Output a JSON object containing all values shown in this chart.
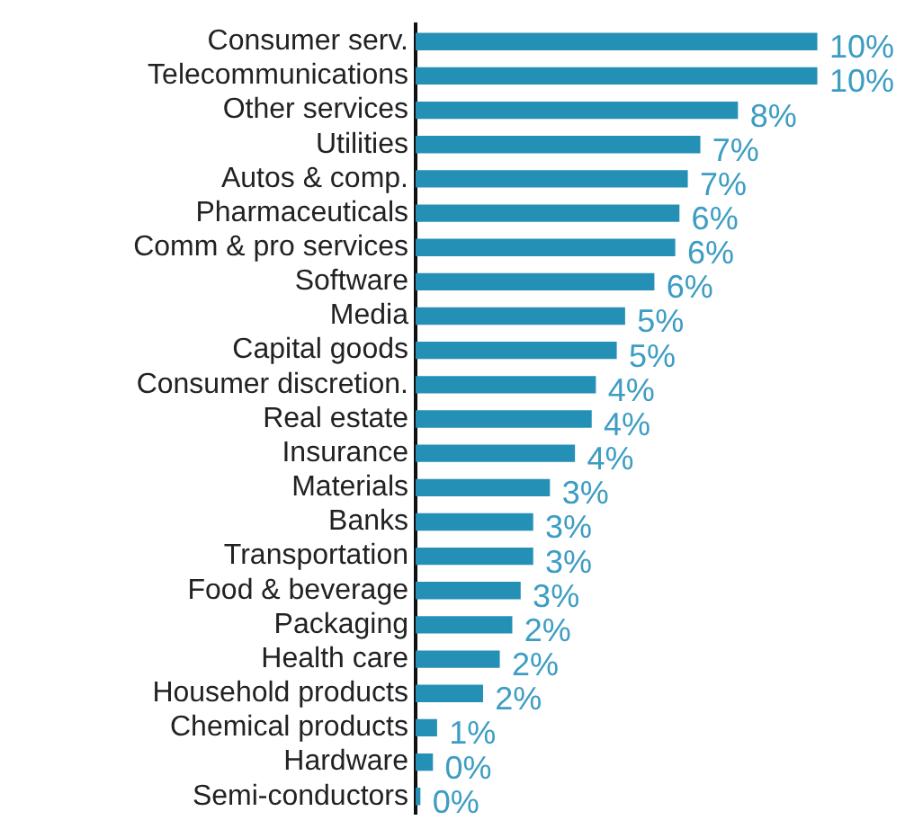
{
  "chart_data": {
    "type": "bar",
    "orientation": "horizontal",
    "tick_labels": "y",
    "grid": false,
    "legend": false,
    "categories": [
      "Consumer serv.",
      "Telecommunications",
      "Other services",
      "Utilities",
      "Autos & comp.",
      "Pharmaceuticals",
      "Comm & pro services",
      "Software",
      "Media",
      "Capital goods",
      "Consumer discretion.",
      "Real estate",
      "Insurance",
      "Materials",
      "Banks",
      "Transportation",
      "Food & beverage",
      "Packaging",
      "Health care",
      "Household products",
      "Chemical products",
      "Hardware",
      "Semi-conductors"
    ],
    "values": [
      9.6,
      9.6,
      7.7,
      6.8,
      6.5,
      6.3,
      6.2,
      5.7,
      5.0,
      4.8,
      4.3,
      4.2,
      3.8,
      3.2,
      2.8,
      2.8,
      2.5,
      2.3,
      2.0,
      1.6,
      0.5,
      0.4,
      0.1
    ],
    "value_labels": [
      "10%",
      "10%",
      "8%",
      "7%",
      "7%",
      "6%",
      "6%",
      "6%",
      "5%",
      "5%",
      "4%",
      "4%",
      "4%",
      "3%",
      "3%",
      "3%",
      "3%",
      "2%",
      "2%",
      "2%",
      "1%",
      "0%",
      "0%"
    ],
    "color": "#2590b5"
  }
}
